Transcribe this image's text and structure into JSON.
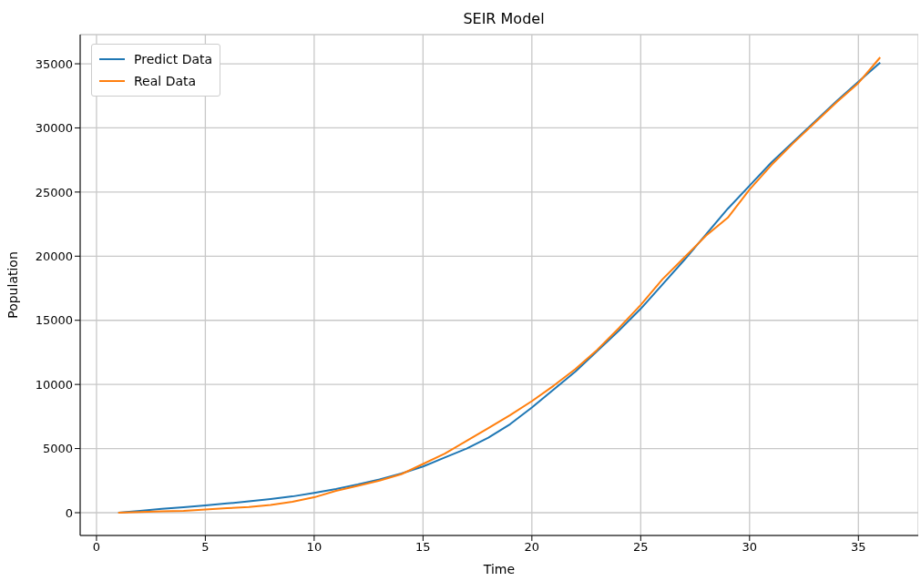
{
  "chart_data": {
    "type": "line",
    "title": "SEIR Model",
    "xlabel": "Time",
    "ylabel": "Population",
    "x": [
      1,
      2,
      3,
      4,
      5,
      6,
      7,
      8,
      9,
      10,
      11,
      12,
      13,
      14,
      15,
      16,
      17,
      18,
      19,
      20,
      21,
      22,
      23,
      24,
      25,
      26,
      27,
      28,
      29,
      30,
      31,
      32,
      33,
      34,
      35,
      36
    ],
    "series": [
      {
        "name": "Predict Data",
        "color": "#1f77b4",
        "values": [
          0,
          150,
          300,
          430,
          560,
          720,
          880,
          1060,
          1270,
          1550,
          1850,
          2200,
          2600,
          3050,
          3600,
          4300,
          5000,
          5850,
          6900,
          8200,
          9600,
          11000,
          12600,
          14200,
          15900,
          17800,
          19700,
          21700,
          23700,
          25500,
          27300,
          28900,
          30500,
          32100,
          33600,
          35100
        ]
      },
      {
        "name": "Real Data",
        "color": "#ff7f0e",
        "values": [
          0,
          50,
          100,
          150,
          250,
          350,
          450,
          600,
          850,
          1200,
          1700,
          2100,
          2500,
          3000,
          3800,
          4600,
          5600,
          6600,
          7600,
          8700,
          9900,
          11200,
          12700,
          14400,
          16200,
          18200,
          19900,
          21600,
          23000,
          25200,
          27100,
          28800,
          30400,
          32000,
          33500,
          35500
        ]
      }
    ],
    "xlim": [
      -0.75,
      37.75
    ],
    "xticks": [
      0,
      5,
      10,
      15,
      20,
      25,
      30,
      35
    ],
    "ylim": [
      -1775,
      37275
    ],
    "yticks": [
      0,
      5000,
      10000,
      15000,
      20000,
      25000,
      30000,
      35000
    ],
    "grid": true,
    "legend": "top left",
    "marker": "none",
    "line_style": "solid"
  }
}
